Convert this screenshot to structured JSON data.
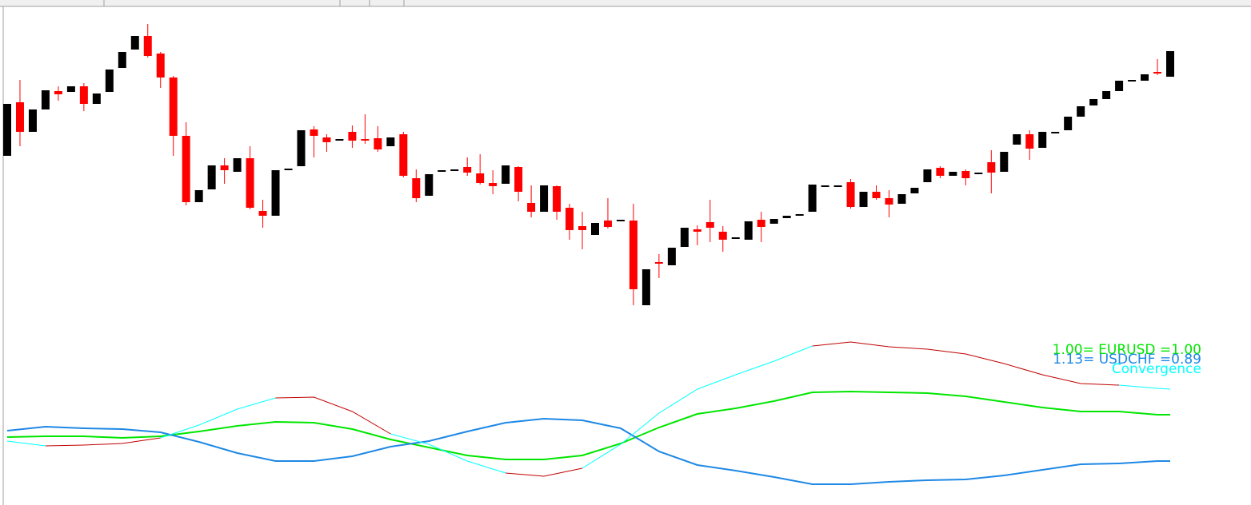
{
  "chart_data": [
    {
      "type": "candlestick",
      "up_color": "#000000",
      "down_color": "#ff0000",
      "xlim": [
        0,
        91
      ],
      "ylim": [
        232,
        612
      ],
      "open": [
        437,
        504,
        467,
        495,
        518,
        517,
        524,
        502,
        517,
        547,
        570,
        587,
        565,
        535,
        462,
        379,
        395,
        425,
        417,
        434,
        368,
        362,
        419,
        424,
        470,
        460,
        456,
        467,
        458,
        459,
        449,
        464,
        409,
        387,
        418,
        419,
        423,
        415,
        403,
        402,
        423,
        378,
        367,
        399,
        372,
        349,
        338,
        356,
        356,
        356,
        250,
        304,
        300,
        323,
        345,
        354,
        342,
        333,
        332,
        357,
        352,
        359,
        362,
        367,
        399,
        399,
        404,
        373,
        392,
        384,
        377,
        390,
        404,
        422,
        412,
        418,
        416,
        429,
        417,
        451,
        464,
        447,
        467,
        469,
        486,
        500,
        508,
        518,
        532,
        531,
        542,
        536
      ],
      "high": [
        502,
        532,
        495,
        519,
        524,
        524,
        528,
        515,
        545,
        567,
        587,
        602,
        567,
        537,
        479,
        394,
        425,
        434,
        434,
        449,
        382,
        419,
        421,
        469,
        474,
        464,
        458,
        475,
        489,
        474,
        460,
        467,
        420,
        414,
        419,
        420,
        435,
        439,
        419,
        425,
        424,
        400,
        400,
        400,
        377,
        367,
        353,
        384,
        357,
        377,
        295,
        314,
        322,
        347,
        350,
        382,
        349,
        335,
        355,
        367,
        358,
        362,
        364,
        401,
        400,
        400,
        408,
        392,
        400,
        394,
        389,
        397,
        420,
        424,
        417,
        420,
        416,
        444,
        442,
        464,
        469,
        467,
        467,
        486,
        499,
        508,
        518,
        531,
        532,
        539,
        558,
        568
      ],
      "low": [
        437,
        449,
        467,
        495,
        506,
        517,
        493,
        502,
        517,
        547,
        570,
        560,
        522,
        437,
        375,
        379,
        395,
        402,
        417,
        370,
        347,
        362,
        419,
        424,
        435,
        442,
        456,
        447,
        452,
        442,
        449,
        410,
        379,
        387,
        418,
        419,
        412,
        401,
        389,
        402,
        380,
        360,
        367,
        357,
        332,
        320,
        338,
        346,
        356,
        250,
        250,
        284,
        300,
        323,
        325,
        329,
        317,
        333,
        332,
        329,
        352,
        359,
        362,
        367,
        399,
        399,
        371,
        373,
        382,
        360,
        377,
        390,
        404,
        409,
        412,
        400,
        416,
        390,
        417,
        451,
        432,
        447,
        467,
        469,
        486,
        500,
        508,
        518,
        532,
        531,
        538,
        536
      ],
      "close": [
        502,
        467,
        495,
        519,
        514,
        524,
        502,
        515,
        545,
        567,
        587,
        562,
        535,
        462,
        379,
        394,
        425,
        419,
        434,
        372,
        362,
        419,
        421,
        469,
        462,
        454,
        458,
        456,
        456,
        445,
        460,
        412,
        384,
        414,
        419,
        420,
        416,
        403,
        399,
        425,
        392,
        367,
        400,
        367,
        344,
        344,
        353,
        348,
        357,
        270,
        295,
        302,
        322,
        347,
        342,
        347,
        332,
        335,
        355,
        348,
        358,
        362,
        364,
        401,
        400,
        400,
        373,
        392,
        384,
        376,
        389,
        397,
        420,
        412,
        417,
        409,
        416,
        416,
        442,
        464,
        446,
        467,
        467,
        486,
        499,
        508,
        518,
        531,
        532,
        539,
        540,
        568
      ]
    },
    {
      "type": "line",
      "xlim": [
        0,
        91
      ],
      "ylim": [
        0,
        222
      ],
      "x": [
        0,
        3,
        6,
        9,
        12,
        15,
        18,
        21,
        24,
        27,
        30,
        33,
        36,
        39,
        42,
        45,
        48,
        51,
        54,
        57,
        60,
        63,
        66,
        69,
        72,
        75,
        78,
        81,
        84,
        87,
        90,
        91
      ],
      "series": [
        {
          "name": "1.00= EURUSD =1.00",
          "color": "#00e600",
          "width": 2,
          "values": [
            85,
            86,
            86,
            84,
            86,
            92,
            99,
            104,
            103,
            95,
            82,
            72,
            62,
            57,
            57,
            62,
            77,
            97,
            114,
            121,
            130,
            141,
            142,
            141,
            140,
            136,
            129,
            122,
            117,
            117,
            113,
            113
          ]
        },
        {
          "name": "1.13= USDCHF =0.89",
          "color": "#1e88e5",
          "width": 2,
          "values": [
            93,
            98,
            96,
            95,
            91,
            79,
            65,
            55,
            55,
            61,
            73,
            80,
            92,
            103,
            108,
            106,
            96,
            67,
            50,
            43,
            35,
            26,
            26,
            29,
            31,
            32,
            37,
            44,
            51,
            52,
            55,
            55
          ]
        },
        {
          "name": "Convergence",
          "color": "#00ffff",
          "width": 1,
          "values": [
            80,
            74,
            null,
            null,
            84,
            100,
            120,
            134,
            null,
            null,
            89,
            76,
            55,
            40,
            null,
            46,
            76,
            115,
            145,
            163,
            180,
            199,
            null,
            null,
            null,
            null,
            null,
            null,
            null,
            150,
            146,
            145
          ]
        },
        {
          "color": "#c00000",
          "width": 1,
          "values": [
            null,
            74,
            75,
            77,
            84,
            null,
            null,
            134,
            135,
            117,
            89,
            null,
            null,
            40,
            36,
            46,
            null,
            null,
            null,
            null,
            null,
            199,
            204,
            198,
            195,
            189,
            177,
            163,
            152,
            150,
            null,
            null
          ]
        }
      ]
    }
  ]
}
